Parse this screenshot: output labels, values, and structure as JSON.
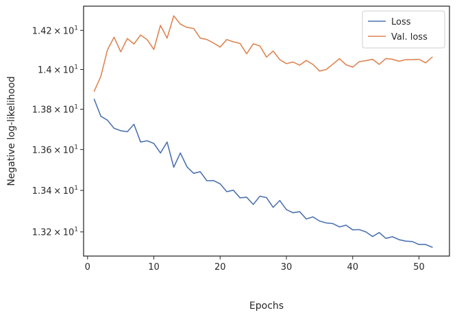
{
  "chart_data": {
    "type": "line",
    "xlabel": "Epochs",
    "ylabel": "Negative log-likelihood",
    "xlim": [
      -0.6,
      54.6
    ],
    "ylim": [
      13.085,
      14.325
    ],
    "y_scale": "log",
    "grid": false,
    "legend_position": "top-right",
    "x_ticks": [
      0,
      10,
      20,
      30,
      40,
      50
    ],
    "x_tick_labels": [
      "0",
      "10",
      "20",
      "30",
      "40",
      "50"
    ],
    "y_ticks": [
      {
        "value": 13.2,
        "mantissa": "1.32"
      },
      {
        "value": 13.4,
        "mantissa": "1.34"
      },
      {
        "value": 13.6,
        "mantissa": "1.36"
      },
      {
        "value": 13.8,
        "mantissa": "1.38"
      },
      {
        "value": 14.0,
        "mantissa": "1.4"
      },
      {
        "value": 14.2,
        "mantissa": "1.42"
      }
    ],
    "y_tick_base": "10",
    "y_tick_exponent": "1",
    "y_tick_times": "×",
    "x": [
      1,
      2,
      3,
      4,
      5,
      6,
      7,
      8,
      9,
      10,
      11,
      12,
      13,
      14,
      15,
      16,
      17,
      18,
      19,
      20,
      21,
      22,
      23,
      24,
      25,
      26,
      27,
      28,
      29,
      30,
      31,
      32,
      33,
      34,
      35,
      36,
      37,
      38,
      39,
      40,
      41,
      42,
      43,
      44,
      45,
      46,
      47,
      48,
      49,
      50,
      51,
      52
    ],
    "series": [
      {
        "name": "Loss",
        "color": "#4c72b0",
        "values": [
          13.85,
          13.765,
          13.745,
          13.705,
          13.693,
          13.688,
          13.725,
          13.637,
          13.643,
          13.63,
          13.583,
          13.637,
          13.513,
          13.583,
          13.515,
          13.483,
          13.491,
          13.447,
          13.448,
          13.432,
          13.394,
          13.401,
          13.364,
          13.367,
          13.332,
          13.372,
          13.365,
          13.318,
          13.351,
          13.307,
          13.292,
          13.297,
          13.262,
          13.272,
          13.252,
          13.243,
          13.24,
          13.224,
          13.232,
          13.21,
          13.211,
          13.2,
          13.178,
          13.197,
          13.169,
          13.177,
          13.163,
          13.156,
          13.154,
          13.14,
          13.14,
          13.127
        ]
      },
      {
        "name": "Val. loss",
        "color": "#dd8452",
        "values": [
          13.89,
          13.965,
          14.1,
          14.165,
          14.09,
          14.158,
          14.13,
          14.176,
          14.152,
          14.102,
          14.226,
          14.16,
          14.275,
          14.232,
          14.215,
          14.21,
          14.16,
          14.153,
          14.135,
          14.114,
          14.153,
          14.141,
          14.133,
          14.08,
          14.131,
          14.12,
          14.063,
          14.094,
          14.05,
          14.03,
          14.038,
          14.022,
          14.046,
          14.026,
          13.992,
          14.0,
          14.027,
          14.055,
          14.024,
          14.012,
          14.04,
          14.045,
          14.052,
          14.026,
          14.056,
          14.052,
          14.042,
          14.05,
          14.05,
          14.052,
          14.034,
          14.063
        ]
      }
    ]
  }
}
